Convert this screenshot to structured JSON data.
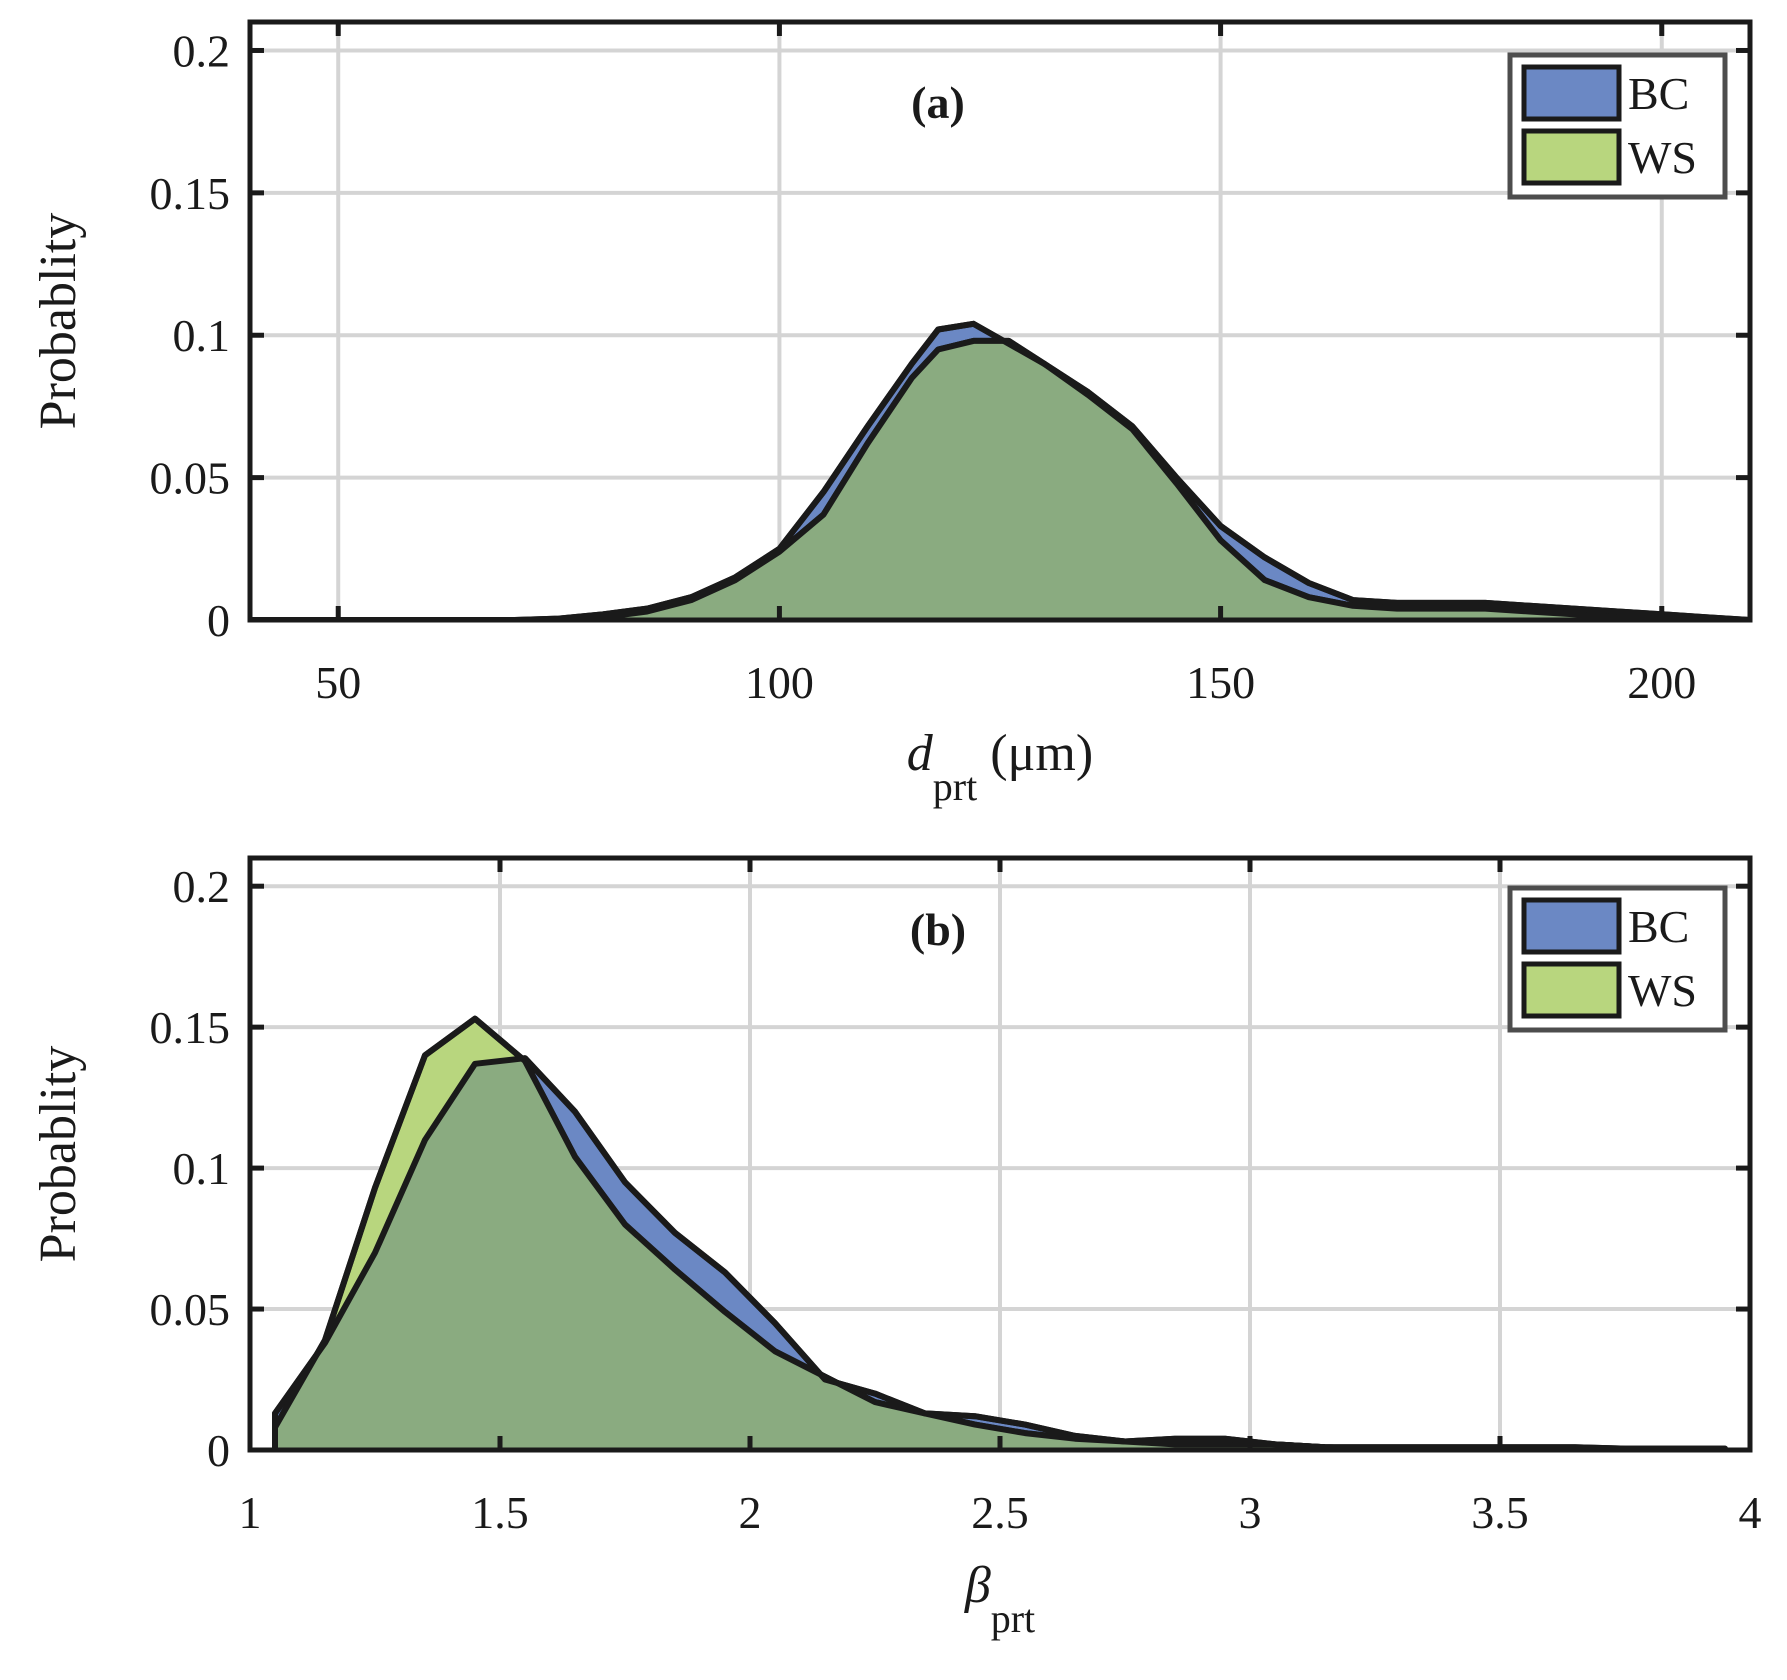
{
  "colors": {
    "bc_fill": "#6b88c4",
    "ws_fill": "#b8d67e",
    "overlap_fill": "#8aab80",
    "outline": "#1a1a1a",
    "grid": "#d4d4d4",
    "legend_border": "#4d4d4d"
  },
  "chart_data": [
    {
      "type": "area",
      "panel_label": "(a)",
      "xlabel_main": "d",
      "xlabel_sub": "prt",
      "xlabel_unit": "(μm)",
      "ylabel": "Probablity",
      "xlim": [
        40,
        210
      ],
      "ylim": [
        0,
        0.21
      ],
      "xticks": [
        50,
        100,
        150,
        200
      ],
      "xtick_labels": [
        "50",
        "100",
        "150",
        "200"
      ],
      "yticks": [
        0,
        0.05,
        0.1,
        0.15,
        0.2
      ],
      "ytick_labels": [
        "0",
        "0.05",
        "0.1",
        "0.15",
        "0.2"
      ],
      "grid": true,
      "legend": {
        "position": "top-right",
        "entries": [
          "BC",
          "WS"
        ]
      },
      "series": [
        {
          "name": "BC",
          "x": [
            40,
            70,
            75,
            80,
            85,
            90,
            95,
            100,
            105,
            110,
            115,
            118,
            122,
            126,
            130,
            135,
            140,
            145,
            150,
            155,
            160,
            165,
            170,
            175,
            180,
            185,
            190,
            195,
            200,
            205,
            210
          ],
          "values": [
            0,
            0,
            0.0005,
            0.002,
            0.004,
            0.008,
            0.015,
            0.025,
            0.045,
            0.068,
            0.09,
            0.102,
            0.104,
            0.097,
            0.09,
            0.08,
            0.068,
            0.05,
            0.033,
            0.022,
            0.013,
            0.007,
            0.006,
            0.006,
            0.006,
            0.005,
            0.004,
            0.003,
            0.002,
            0.001,
            0
          ]
        },
        {
          "name": "WS",
          "x": [
            40,
            70,
            75,
            80,
            85,
            90,
            95,
            100,
            105,
            110,
            115,
            118,
            122,
            126,
            130,
            135,
            140,
            145,
            150,
            155,
            160,
            165,
            170,
            175,
            180,
            185,
            190,
            195,
            200,
            205,
            210
          ],
          "values": [
            0,
            0,
            0,
            0.001,
            0.003,
            0.007,
            0.014,
            0.024,
            0.037,
            0.062,
            0.085,
            0.095,
            0.098,
            0.098,
            0.09,
            0.079,
            0.067,
            0.048,
            0.028,
            0.014,
            0.008,
            0.005,
            0.004,
            0.004,
            0.004,
            0.003,
            0.002,
            0.001,
            0.001,
            0,
            0
          ]
        }
      ]
    },
    {
      "type": "area",
      "panel_label": "(b)",
      "xlabel_main": "β",
      "xlabel_sub": "prt",
      "xlabel_unit": "",
      "ylabel": "Probablity",
      "xlim": [
        1,
        4
      ],
      "ylim": [
        0,
        0.21
      ],
      "xticks": [
        1,
        1.5,
        2,
        2.5,
        3,
        3.5,
        4
      ],
      "xtick_labels": [
        "1",
        "1.5",
        "2",
        "2.5",
        "3",
        "3.5",
        "4"
      ],
      "yticks": [
        0,
        0.05,
        0.1,
        0.15,
        0.2
      ],
      "ytick_labels": [
        "0",
        "0.05",
        "0.1",
        "0.15",
        "0.2"
      ],
      "grid": true,
      "legend": {
        "position": "top-right",
        "entries": [
          "BC",
          "WS"
        ]
      },
      "series": [
        {
          "name": "BC",
          "x": [
            1.05,
            1.05,
            1.15,
            1.25,
            1.35,
            1.45,
            1.55,
            1.65,
            1.75,
            1.85,
            1.95,
            2.05,
            2.15,
            2.25,
            2.35,
            2.45,
            2.55,
            2.65,
            2.75,
            2.85,
            2.95,
            3.05,
            3.15,
            3.25,
            3.35,
            3.45,
            3.55,
            3.65,
            3.75,
            3.85,
            3.95
          ],
          "values": [
            0,
            0.013,
            0.038,
            0.07,
            0.11,
            0.137,
            0.139,
            0.12,
            0.095,
            0.077,
            0.063,
            0.045,
            0.025,
            0.02,
            0.013,
            0.012,
            0.009,
            0.005,
            0.003,
            0.002,
            0.002,
            0.002,
            0.001,
            0.001,
            0.001,
            0.001,
            0.001,
            0.001,
            0.0005,
            0.0005,
            0.0005
          ]
        },
        {
          "name": "WS",
          "x": [
            1.05,
            1.05,
            1.15,
            1.25,
            1.35,
            1.45,
            1.55,
            1.65,
            1.75,
            1.85,
            1.95,
            2.05,
            2.15,
            2.25,
            2.35,
            2.45,
            2.55,
            2.65,
            2.75,
            2.85,
            2.95,
            3.05,
            3.15,
            3.25,
            3.35,
            3.45,
            3.55,
            3.65,
            3.75,
            3.85,
            3.95
          ],
          "values": [
            0,
            0.008,
            0.039,
            0.093,
            0.14,
            0.153,
            0.138,
            0.104,
            0.08,
            0.064,
            0.049,
            0.035,
            0.026,
            0.017,
            0.013,
            0.009,
            0.006,
            0.004,
            0.003,
            0.004,
            0.004,
            0.002,
            0.001,
            0.0005,
            0.0005,
            0.0005,
            0,
            0,
            0,
            0,
            0
          ]
        }
      ]
    }
  ]
}
